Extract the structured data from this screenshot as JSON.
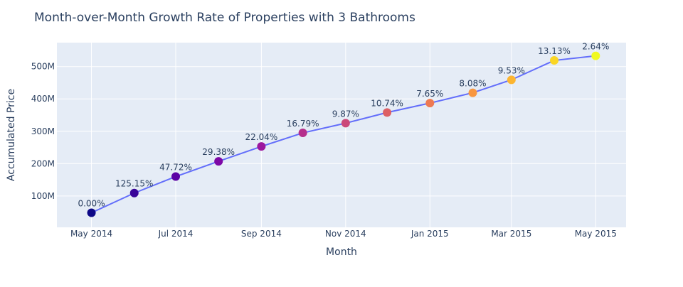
{
  "chart_data": {
    "type": "line",
    "title": "Month-over-Month Growth Rate of Properties with 3 Bathrooms",
    "xlabel": "Month",
    "ylabel": "Accumulated Price",
    "x": [
      "2014-05",
      "2014-06",
      "2014-07",
      "2014-08",
      "2014-09",
      "2014-10",
      "2014-11",
      "2014-12",
      "2015-01",
      "2015-02",
      "2015-03",
      "2015-04",
      "2015-05"
    ],
    "values": [
      48,
      109,
      160,
      207,
      253,
      295,
      325,
      358,
      387,
      419,
      459,
      519,
      533
    ],
    "value_unit": "M",
    "labels": [
      "0.00%",
      "125.15%",
      "47.72%",
      "29.38%",
      "22.04%",
      "16.79%",
      "9.87%",
      "10.74%",
      "7.65%",
      "8.08%",
      "9.53%",
      "13.13%",
      "2.64%"
    ],
    "x_ticks": [
      "May 2014",
      "Jul 2014",
      "Sep 2014",
      "Nov 2014",
      "Jan 2015",
      "Mar 2015",
      "May 2015"
    ],
    "y_ticks": [
      "100M",
      "200M",
      "300M",
      "400M",
      "500M"
    ],
    "y_tick_values": [
      100,
      200,
      300,
      400,
      500
    ],
    "ylim": [
      3,
      574
    ],
    "xlim": [
      "2014-04-06",
      "2015-05-23"
    ],
    "grid": true,
    "colorscale": "plasma",
    "line_color": "#636efa",
    "plot_bg": "#e5ecf6"
  }
}
